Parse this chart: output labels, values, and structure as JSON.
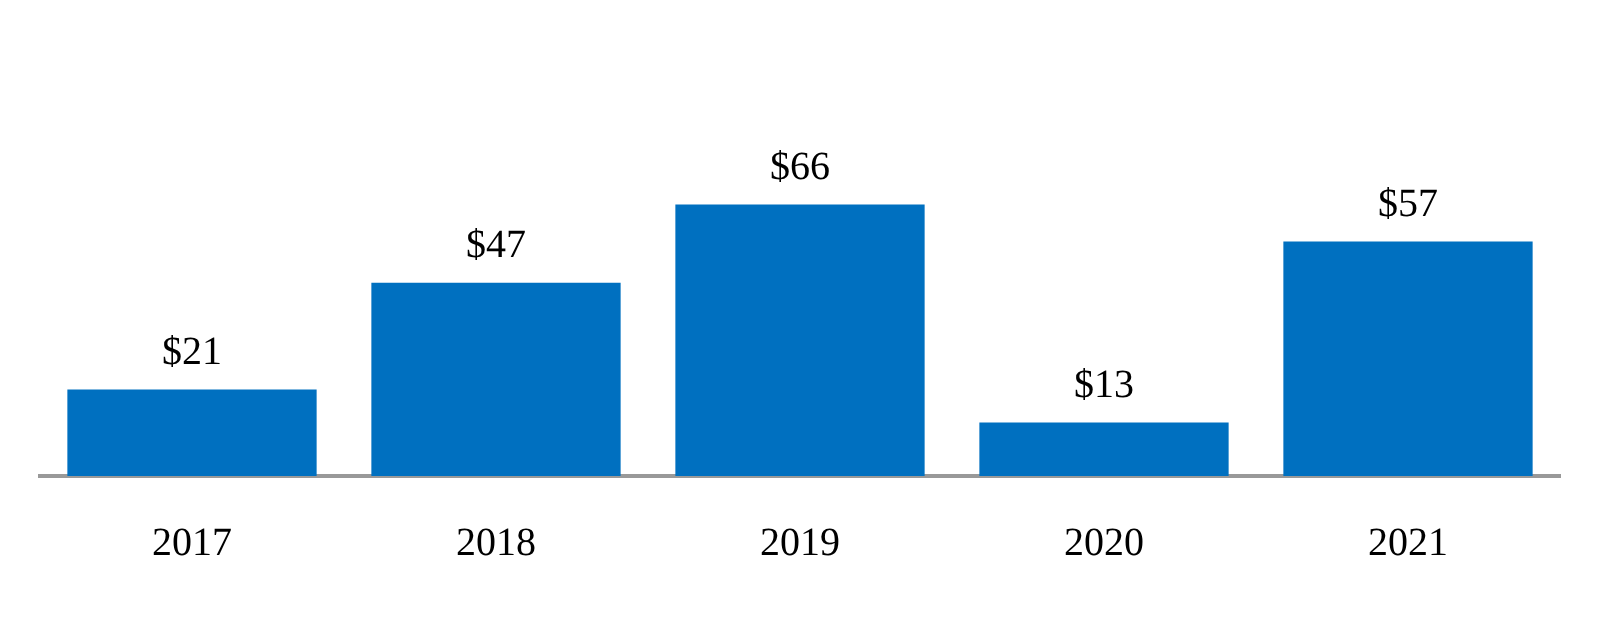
{
  "chart_data": {
    "type": "bar",
    "categories": [
      "2017",
      "2018",
      "2019",
      "2020",
      "2021"
    ],
    "values": [
      21,
      47,
      66,
      13,
      57
    ],
    "value_labels": [
      "$21",
      "$47",
      "$66",
      "$13",
      "$57"
    ],
    "color": "#0070c0"
  }
}
